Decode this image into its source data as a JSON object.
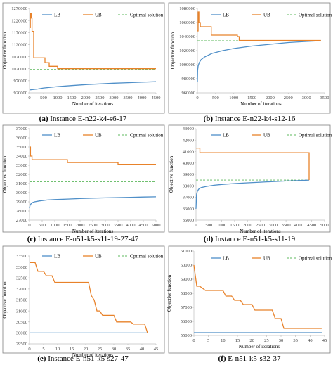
{
  "colors": {
    "lb": "#4f8fc8",
    "ub": "#e8822a",
    "opt": "#5cb85c"
  },
  "legend": {
    "lb": "LB",
    "ub": "UB",
    "opt": "Optimal solution"
  },
  "chart_data": [
    {
      "type": "line",
      "caption_id": "(a)",
      "caption_text": " Instance E-n22-k4-s6-17",
      "xlabel": "Number of iterations",
      "ylabel": "Objective function",
      "xlim": [
        0,
        4500
      ],
      "ylim": [
        920000,
        1270000
      ],
      "xticks": [
        0,
        500,
        1000,
        1500,
        2000,
        2500,
        3000,
        3500,
        4000,
        4500
      ],
      "yticks": [
        920000,
        970000,
        1020000,
        1070000,
        1120000,
        1170000,
        1220000,
        1270000
      ],
      "series": [
        {
          "name": "LB",
          "x": [
            0,
            300,
            500,
            1000,
            1500,
            2000,
            2500,
            3000,
            3500,
            4000,
            4500
          ],
          "y": [
            932000,
            936000,
            940000,
            946000,
            950000,
            954000,
            957000,
            960000,
            962000,
            964000,
            966000
          ]
        },
        {
          "name": "UB",
          "x": [
            0,
            30,
            30,
            60,
            60,
            90,
            90,
            150,
            150,
            550,
            550,
            700,
            700,
            1000,
            1000,
            4500
          ],
          "y": [
            1190000,
            1190000,
            1250000,
            1250000,
            1230000,
            1230000,
            1175000,
            1175000,
            1065000,
            1065000,
            1045000,
            1045000,
            1030000,
            1030000,
            1020000,
            1020000
          ]
        },
        {
          "name": "Optimal solution",
          "x": [
            0,
            4500
          ],
          "y": [
            1017000,
            1017000
          ]
        }
      ]
    },
    {
      "type": "line",
      "caption_id": "(b)",
      "caption_text": " Instance E-n22-k4-s12-16",
      "xlabel": "Number of iterations",
      "ylabel": "Objective function",
      "xlim": [
        0,
        3500
      ],
      "ylim": [
        960000,
        1080000
      ],
      "xticks": [
        0,
        500,
        1000,
        1500,
        2000,
        2500,
        3000,
        3500
      ],
      "yticks": [
        960000,
        980000,
        1000000,
        1020000,
        1040000,
        1060000,
        1080000
      ],
      "series": [
        {
          "name": "LB",
          "x": [
            0,
            5,
            20,
            50,
            100,
            200,
            400,
            700,
            1000,
            1500,
            2000,
            2500,
            3000,
            3400
          ],
          "y": [
            975000,
            992000,
            998000,
            1003000,
            1007000,
            1011000,
            1016000,
            1020000,
            1023000,
            1026500,
            1029000,
            1031500,
            1033000,
            1034000
          ]
        },
        {
          "name": "UB",
          "x": [
            0,
            20,
            20,
            40,
            40,
            80,
            80,
            380,
            380,
            1100,
            1100,
            1150,
            1150,
            3400
          ],
          "y": [
            1048000,
            1048000,
            1075000,
            1075000,
            1060000,
            1060000,
            1054000,
            1054000,
            1042000,
            1042000,
            1040000,
            1040000,
            1034500,
            1034500
          ]
        },
        {
          "name": "Optimal solution",
          "x": [
            0,
            3400
          ],
          "y": [
            1034000,
            1034000
          ]
        }
      ]
    },
    {
      "type": "line",
      "caption_id": "(c)",
      "caption_text": " Instance E-n51-k5-s11-19-27-47",
      "xlabel": "Number of iterations",
      "ylabel": "Objective function",
      "xlim": [
        0,
        5000
      ],
      "ylim": [
        27000,
        37000
      ],
      "xticks": [
        0,
        500,
        1000,
        1500,
        2000,
        2500,
        3000,
        3500,
        4000,
        4500,
        5000
      ],
      "yticks": [
        27000,
        28000,
        29000,
        30000,
        31000,
        32000,
        33000,
        34000,
        35000,
        36000,
        37000
      ],
      "series": [
        {
          "name": "LB",
          "x": [
            0,
            20,
            50,
            100,
            200,
            400,
            700,
            1000,
            1500,
            2000,
            2500,
            3000,
            3500,
            4000,
            4500,
            5000
          ],
          "y": [
            28300,
            28600,
            28750,
            28900,
            29000,
            29100,
            29200,
            29250,
            29300,
            29350,
            29400,
            29430,
            29460,
            29490,
            29520,
            29550
          ]
        },
        {
          "name": "UB",
          "x": [
            0,
            40,
            40,
            100,
            100,
            1500,
            1500,
            3500,
            3500,
            5000
          ],
          "y": [
            35000,
            35000,
            34000,
            34000,
            33600,
            33600,
            33300,
            33300,
            33100,
            33100
          ]
        },
        {
          "name": "Optimal solution",
          "x": [
            0,
            5000
          ],
          "y": [
            31200,
            31200
          ]
        }
      ]
    },
    {
      "type": "line",
      "caption_id": "(d)",
      "caption_text": " Instance E-n51-k5-s11-19",
      "xlabel": "Number of iterations",
      "ylabel": "Objective function",
      "xlim": [
        0,
        5000
      ],
      "ylim": [
        35000,
        43000
      ],
      "xticks": [
        0,
        500,
        1000,
        1500,
        2000,
        2500,
        3000,
        3500,
        4000,
        4500,
        5000
      ],
      "yticks": [
        35000,
        36000,
        37000,
        38000,
        39000,
        40000,
        41000,
        42000,
        43000
      ],
      "series": [
        {
          "name": "LB",
          "x": [
            0,
            20,
            50,
            100,
            200,
            400,
            700,
            1000,
            1500,
            2000,
            2500,
            3000,
            3500,
            4000,
            4400
          ],
          "y": [
            36000,
            37200,
            37500,
            37700,
            37850,
            37950,
            38050,
            38120,
            38200,
            38260,
            38320,
            38370,
            38420,
            38460,
            38500
          ]
        },
        {
          "name": "UB",
          "x": [
            0,
            150,
            150,
            4400,
            4400
          ],
          "y": [
            41300,
            41300,
            40900,
            40900,
            38500
          ]
        },
        {
          "name": "Optimal solution",
          "x": [
            0,
            4400
          ],
          "y": [
            38500,
            38500
          ]
        }
      ]
    },
    {
      "type": "line",
      "caption_id": "(e)",
      "caption_text": " Instance E-n51-k5-s27-47",
      "xlabel": "Number of iterations",
      "ylabel": "Objective function",
      "xlim": [
        0,
        45
      ],
      "ylim": [
        29500,
        33500
      ],
      "xticks": [
        0,
        5,
        10,
        15,
        20,
        25,
        30,
        35,
        40,
        45
      ],
      "yticks": [
        29500,
        30000,
        30500,
        31000,
        31500,
        32000,
        32500,
        33000,
        33500
      ],
      "series": [
        {
          "name": "LB",
          "x": [
            0,
            42
          ],
          "y": [
            30000,
            30000
          ]
        },
        {
          "name": "UB",
          "x": [
            0,
            2,
            3,
            5,
            6,
            8,
            9,
            21,
            22,
            23,
            24,
            25,
            26,
            28,
            30,
            31,
            32,
            36,
            37,
            41,
            42
          ],
          "y": [
            33200,
            33200,
            32800,
            32800,
            32600,
            32600,
            32300,
            32300,
            31700,
            31500,
            31000,
            31000,
            30800,
            30800,
            30800,
            30500,
            30500,
            30500,
            30400,
            30400,
            30000
          ]
        },
        {
          "name": "Optimal solution",
          "x": [
            0,
            42
          ],
          "y": [
            30000,
            30000
          ]
        }
      ]
    },
    {
      "type": "line",
      "caption_id": "(f)",
      "caption_text": " E-n51-k5-s32-37",
      "xlabel": "Number of iterations",
      "ylabel": "Objective function",
      "xlim": [
        0,
        45
      ],
      "ylim": [
        55000,
        61000
      ],
      "xticks": [
        0,
        5,
        10,
        15,
        20,
        25,
        30,
        35,
        40,
        45
      ],
      "yticks": [
        55000,
        56000,
        57000,
        58000,
        59000,
        60000,
        61000
      ],
      "series": [
        {
          "name": "LB",
          "x": [
            0,
            44
          ],
          "y": [
            55200,
            55200
          ]
        },
        {
          "name": "UB",
          "x": [
            0,
            1,
            2,
            4,
            5,
            10,
            11,
            13,
            14,
            16,
            17,
            20,
            21,
            27,
            28,
            30,
            31,
            44
          ],
          "y": [
            60000,
            58500,
            58500,
            58200,
            58200,
            58200,
            57800,
            57800,
            57500,
            57500,
            57200,
            57200,
            56800,
            56800,
            56200,
            56200,
            55500,
            55500
          ]
        },
        {
          "name": "Optimal solution",
          "x": [
            0,
            44
          ],
          "y": [
            55200,
            55200
          ]
        }
      ]
    }
  ]
}
